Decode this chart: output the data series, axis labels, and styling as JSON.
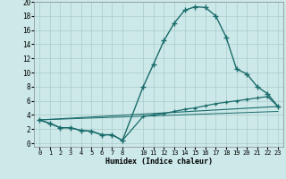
{
  "xlabel": "Humidex (Indice chaleur)",
  "bg_color": "#cce8e8",
  "grid_color": "#aacccc",
  "line_color": "#1a6b6b",
  "xlim": [
    -0.5,
    23.5
  ],
  "ylim": [
    -0.5,
    20.0
  ],
  "xticks": [
    0,
    1,
    2,
    3,
    4,
    5,
    6,
    7,
    8,
    10,
    11,
    12,
    13,
    14,
    15,
    16,
    17,
    18,
    19,
    20,
    21,
    22,
    23
  ],
  "yticks": [
    0,
    2,
    4,
    6,
    8,
    10,
    12,
    14,
    16,
    18,
    20
  ],
  "series1_x": [
    0,
    1,
    2,
    3,
    4,
    5,
    6,
    7,
    8,
    10,
    11,
    12,
    13,
    14,
    15,
    16,
    17,
    18,
    19,
    20,
    21,
    22,
    23
  ],
  "series1_y": [
    3.3,
    2.8,
    2.2,
    2.2,
    1.8,
    1.7,
    1.2,
    1.2,
    0.4,
    8.0,
    11.2,
    14.5,
    17.0,
    18.8,
    19.3,
    19.2,
    18.0,
    15.0,
    10.5,
    9.8,
    8.0,
    7.0,
    5.2
  ],
  "series2_x": [
    0,
    1,
    2,
    3,
    4,
    5,
    6,
    7,
    8,
    10,
    11,
    12,
    13,
    14,
    15,
    16,
    17,
    18,
    19,
    20,
    21,
    22,
    23
  ],
  "series2_y": [
    3.3,
    2.8,
    2.2,
    2.2,
    1.8,
    1.7,
    1.2,
    1.2,
    0.4,
    3.8,
    4.0,
    4.2,
    4.5,
    4.8,
    5.0,
    5.3,
    5.6,
    5.8,
    6.0,
    6.2,
    6.4,
    6.6,
    5.2
  ],
  "series3_x": [
    0,
    23
  ],
  "series3_y": [
    3.3,
    5.2
  ],
  "series4_x": [
    0,
    23
  ],
  "series4_y": [
    3.3,
    4.5
  ]
}
